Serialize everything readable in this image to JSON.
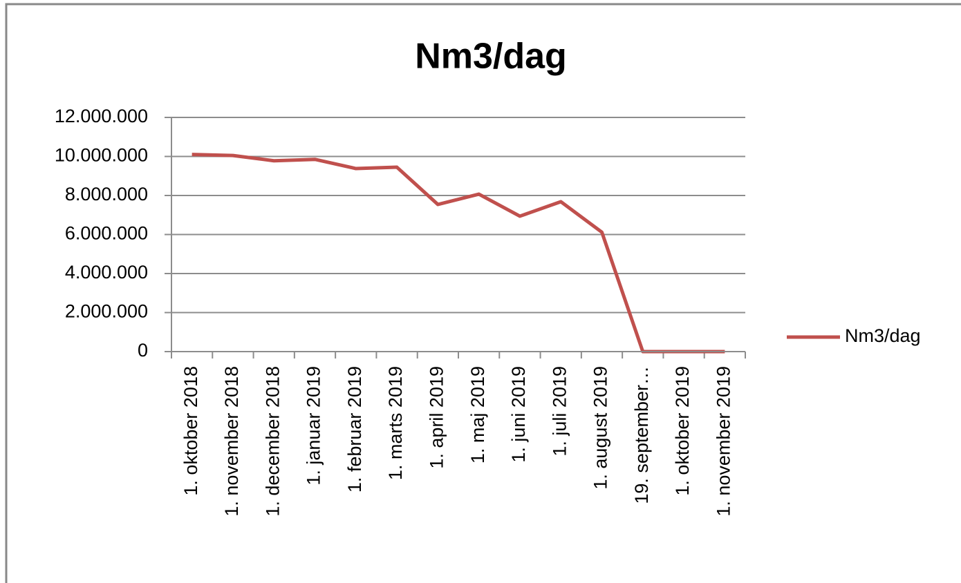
{
  "chart_data": {
    "type": "line",
    "title": "Nm3/dag",
    "categories": [
      "1. oktober 2018",
      "1. november 2018",
      "1. december 2018",
      "1. januar 2019",
      "1. februar 2019",
      "1. marts 2019",
      "1. april 2019",
      "1. maj 2019",
      "1. juni 2019",
      "1. juli 2019",
      "1. august 2019",
      "19. september…",
      "1. oktober 2019",
      "1. november 2019"
    ],
    "series": [
      {
        "name": "Nm3/dag",
        "color": "#c0504d",
        "values": [
          10100000,
          10050000,
          9780000,
          9850000,
          9380000,
          9450000,
          7540000,
          8070000,
          6940000,
          7680000,
          6120000,
          0,
          0,
          0
        ]
      }
    ],
    "ylim": [
      0,
      12000000
    ],
    "yticks": [
      0,
      {
        "value": 2000000,
        "label": "2.000.000"
      },
      {
        "value": 4000000,
        "label": "4.000.000"
      },
      {
        "value": 6000000,
        "label": "6.000.000"
      },
      {
        "value": 8000000,
        "label": "8.000.000"
      },
      {
        "value": 10000000,
        "label": "10.000.000"
      },
      {
        "value": 12000000,
        "label": "12.000.000"
      }
    ],
    "grid": true,
    "legend": "right"
  }
}
